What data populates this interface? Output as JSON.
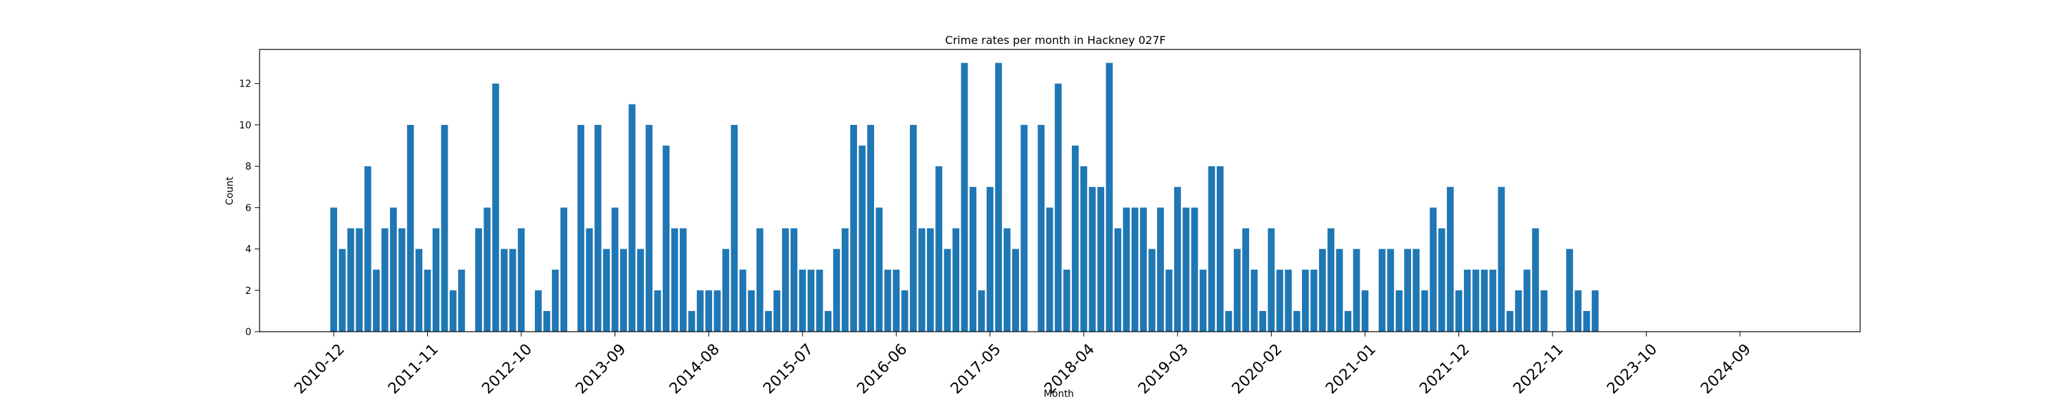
{
  "chart_data": {
    "type": "bar",
    "title": "Crime rates per month in Hackney 027F",
    "xlabel": "Month",
    "ylabel": "Count",
    "bar_color": "#1f77b4",
    "ylim": [
      0,
      13.65
    ],
    "yticks": [
      0,
      2,
      4,
      6,
      8,
      10,
      12
    ],
    "xticks": [
      "2010-12",
      "2011-11",
      "2012-10",
      "2013-09",
      "2014-08",
      "2015-07",
      "2016-06",
      "2017-05",
      "2018-04",
      "2019-03",
      "2020-02",
      "2021-01",
      "2021-12",
      "2022-11",
      "2023-10",
      "2024-09"
    ],
    "grid": false,
    "values": [
      6,
      4,
      5,
      5,
      8,
      3,
      5,
      6,
      5,
      10,
      4,
      3,
      5,
      10,
      2,
      3,
      null,
      5,
      6,
      12,
      4,
      4,
      5,
      null,
      2,
      1,
      3,
      6,
      null,
      10,
      5,
      10,
      4,
      6,
      4,
      11,
      4,
      10,
      2,
      9,
      5,
      5,
      1,
      2,
      2,
      2,
      4,
      10,
      3,
      2,
      5,
      1,
      2,
      5,
      5,
      3,
      3,
      3,
      1,
      4,
      5,
      10,
      9,
      10,
      6,
      3,
      3,
      2,
      10,
      5,
      5,
      8,
      4,
      5,
      13,
      7,
      2,
      7,
      13,
      5,
      4,
      10,
      null,
      10,
      6,
      12,
      3,
      9,
      8,
      7,
      7,
      13,
      5,
      6,
      6,
      6,
      4,
      6,
      3,
      7,
      6,
      6,
      3,
      8,
      8,
      1,
      4,
      5,
      3,
      1,
      5,
      3,
      3,
      1,
      3,
      3,
      4,
      5,
      4,
      1,
      4,
      2,
      null,
      4,
      4,
      2,
      4,
      4,
      2,
      6,
      5,
      7,
      2,
      3,
      3,
      3,
      3,
      7,
      1,
      2,
      3,
      5,
      2,
      null,
      null,
      4,
      2,
      1,
      2
    ]
  }
}
